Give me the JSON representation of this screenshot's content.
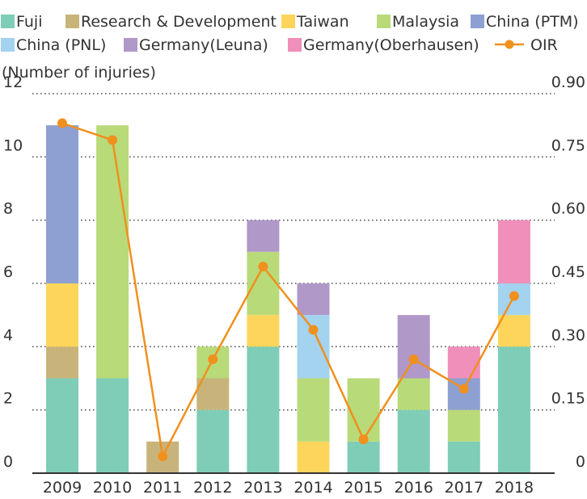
{
  "chart_data": {
    "type": "bar",
    "stacked": true,
    "y_axis_label": "(Number of injuries)",
    "categories": [
      "2009",
      "2010",
      "2011",
      "2012",
      "2013",
      "2014",
      "2015",
      "2016",
      "2017",
      "2018"
    ],
    "ylim": [
      0,
      12
    ],
    "y_ticks": [
      "0",
      "2",
      "4",
      "6",
      "8",
      "10",
      "12"
    ],
    "y2lim": [
      0,
      0.9
    ],
    "y2_ticks": [
      "0",
      "0.15",
      "0.30",
      "0.45",
      "0.60",
      "0.75",
      "0.90"
    ],
    "grid": "horizontal dotted",
    "legend_position": "top",
    "series": [
      {
        "name": "Fuji",
        "color": "#7fcdb6",
        "values": [
          3,
          3,
          0,
          2,
          4,
          0,
          1,
          2,
          1,
          4
        ]
      },
      {
        "name": "Research & Development",
        "color": "#c8b47a",
        "values": [
          1,
          0,
          1,
          1,
          0,
          0,
          0,
          0,
          0,
          0
        ]
      },
      {
        "name": "Taiwan",
        "color": "#fdd55b",
        "values": [
          2,
          0,
          0,
          0,
          1,
          1,
          0,
          0,
          0,
          1
        ]
      },
      {
        "name": "Malaysia",
        "color": "#b9da79",
        "values": [
          0,
          8,
          0,
          1,
          2,
          2,
          2,
          1,
          1,
          0
        ]
      },
      {
        "name": "China (PTM)",
        "color": "#8e9fd1",
        "values": [
          5,
          0,
          0,
          0,
          0,
          0,
          0,
          0,
          1,
          0
        ]
      },
      {
        "name": "China (PNL)",
        "color": "#a3d3ef",
        "values": [
          0,
          0,
          0,
          0,
          0,
          2,
          0,
          0,
          0,
          1
        ]
      },
      {
        "name": "Germany(Leuna)",
        "color": "#b098c9",
        "values": [
          0,
          0,
          0,
          0,
          1,
          1,
          0,
          2,
          0,
          0
        ]
      },
      {
        "name": "Germany(Oberhausen)",
        "color": "#ef8fba",
        "values": [
          0,
          0,
          0,
          0,
          0,
          0,
          0,
          0,
          1,
          2
        ]
      }
    ],
    "line_series": {
      "name": "OIR",
      "axis": "right",
      "color": "#f0901e",
      "values": [
        0.83,
        0.79,
        0.04,
        0.27,
        0.49,
        0.34,
        0.08,
        0.27,
        0.2,
        0.42
      ]
    }
  }
}
